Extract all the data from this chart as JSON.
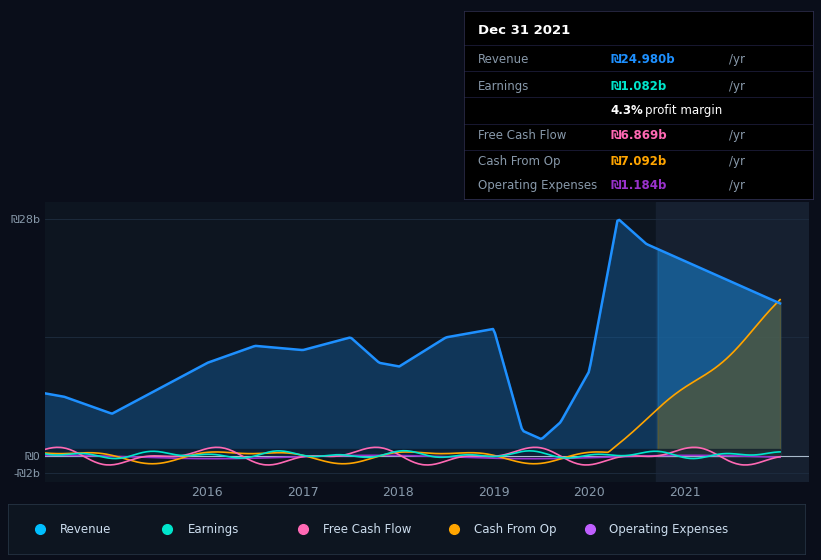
{
  "bg_color": "#0a0e1a",
  "chart_bg": "#0d1520",
  "panel_bg": "#000000",
  "title": "Dec 31 2021",
  "y_ticks_labels": [
    "₪28b",
    "₪0",
    "-₪2b"
  ],
  "y_ticks_vals": [
    28,
    0,
    -2
  ],
  "y_max": 30,
  "y_min": -3,
  "x_labels": [
    "2016",
    "2017",
    "2018",
    "2019",
    "2020",
    "2021"
  ],
  "legend": [
    {
      "label": "Revenue",
      "color": "#00bfff"
    },
    {
      "label": "Earnings",
      "color": "#00e5cc"
    },
    {
      "label": "Free Cash Flow",
      "color": "#ff69b4"
    },
    {
      "label": "Cash From Op",
      "color": "#ffa500"
    },
    {
      "label": "Operating Expenses",
      "color": "#bf5fff"
    }
  ],
  "revenue_color": "#1e90ff",
  "earnings_color": "#00e5cc",
  "fcf_color": "#ff69b4",
  "cashop_color": "#ffa500",
  "opex_color": "#9932cc",
  "tooltip_rows": [
    {
      "label": "Revenue",
      "value": "₪24.980b",
      "unit": "/yr",
      "color": "#1e90ff"
    },
    {
      "label": "Earnings",
      "value": "₪1.082b",
      "unit": "/yr",
      "color": "#00e5cc"
    },
    {
      "label": "",
      "value": "4.3%",
      "unit": "profit margin",
      "color": "white"
    },
    {
      "label": "Free Cash Flow",
      "value": "₪6.869b",
      "unit": "/yr",
      "color": "#ff69b4"
    },
    {
      "label": "Cash From Op",
      "value": "₪7.092b",
      "unit": "/yr",
      "color": "#ffa500"
    },
    {
      "label": "Operating Expenses",
      "value": "₪1.184b",
      "unit": "/yr",
      "color": "#9932cc"
    }
  ],
  "highlight_year": 2020.7,
  "grid_color": "#1e2d40",
  "zero_line_color": "#aabbcc",
  "text_color": "#8899aa",
  "legend_text_color": "#ccddee"
}
